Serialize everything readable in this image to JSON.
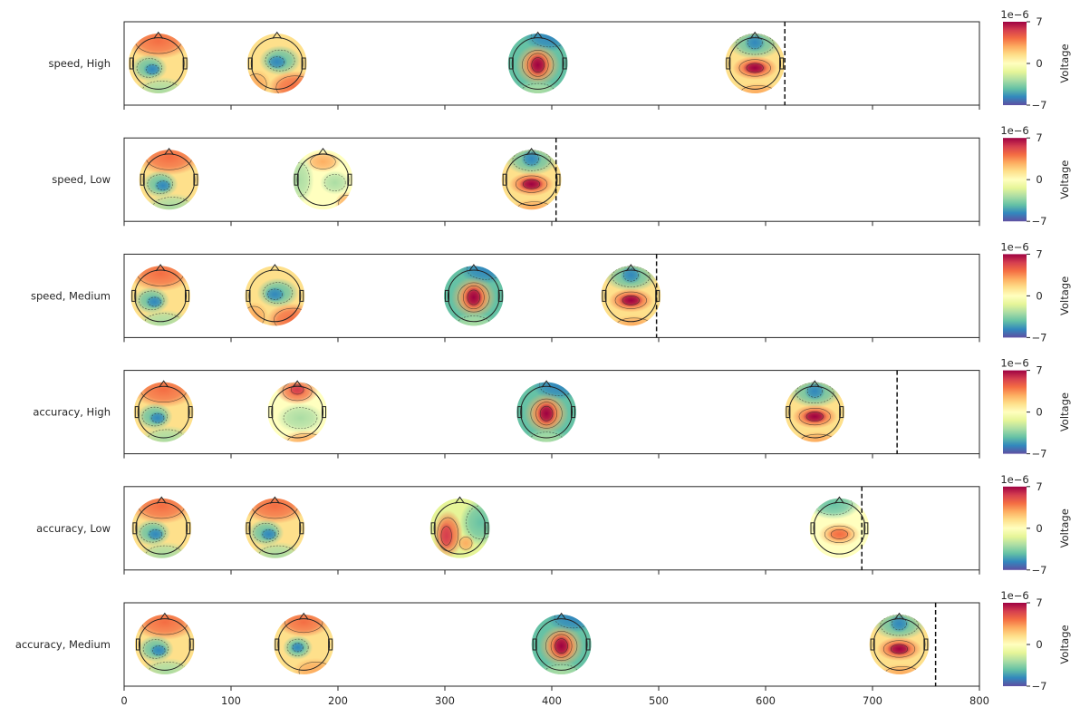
{
  "chart_data": {
    "type": "topomap-timeline",
    "x_range": [
      0,
      800
    ],
    "x_ticks": [
      0,
      100,
      200,
      300,
      400,
      500,
      600,
      700,
      800
    ],
    "colorbar": {
      "label": "Voltage",
      "exponent_label": "1e−6",
      "ticks": [
        "7",
        "0",
        "−7"
      ],
      "range": [
        -7,
        7
      ],
      "colormap": "Spectral_r"
    },
    "rows": [
      {
        "label": "speed, High",
        "event_time": 618,
        "topomaps": [
          {
            "time": 32,
            "pattern": "frontal-pos-parietal-neg"
          },
          {
            "time": 143,
            "pattern": "posterior-pos-central-neg"
          },
          {
            "time": 387,
            "pattern": "central-pos-strong"
          },
          {
            "time": 590,
            "pattern": "frontal-neg-central-pos"
          }
        ]
      },
      {
        "label": "speed, Low",
        "event_time": 404,
        "topomaps": [
          {
            "time": 42,
            "pattern": "frontal-pos-parietal-neg"
          },
          {
            "time": 186,
            "pattern": "weak-mixed"
          },
          {
            "time": 381,
            "pattern": "frontal-neg-central-pos"
          }
        ]
      },
      {
        "label": "speed, Medium",
        "event_time": 498,
        "topomaps": [
          {
            "time": 34,
            "pattern": "frontal-pos-parietal-neg"
          },
          {
            "time": 141,
            "pattern": "posterior-pos-central-neg"
          },
          {
            "time": 327,
            "pattern": "central-pos-strong"
          },
          {
            "time": 474,
            "pattern": "frontal-neg-central-pos"
          }
        ]
      },
      {
        "label": "accuracy, High",
        "event_time": 723,
        "topomaps": [
          {
            "time": 37,
            "pattern": "frontal-pos-parietal-neg"
          },
          {
            "time": 162,
            "pattern": "frontal-pos-weak"
          },
          {
            "time": 395,
            "pattern": "central-pos-strong"
          },
          {
            "time": 646,
            "pattern": "frontal-neg-central-pos"
          }
        ]
      },
      {
        "label": "accuracy, Low",
        "event_time": 690,
        "topomaps": [
          {
            "time": 35,
            "pattern": "frontal-pos-parietal-neg"
          },
          {
            "time": 141,
            "pattern": "frontal-pos-parietal-neg"
          },
          {
            "time": 314,
            "pattern": "lateral-pos"
          },
          {
            "time": 669,
            "pattern": "frontal-neg-central-pos-weak"
          }
        ]
      },
      {
        "label": "accuracy, Medium",
        "event_time": 759,
        "topomaps": [
          {
            "time": 38,
            "pattern": "frontal-pos-parietal-neg"
          },
          {
            "time": 168,
            "pattern": "frontal-pos-central-neg"
          },
          {
            "time": 409,
            "pattern": "central-pos-strong"
          },
          {
            "time": 725,
            "pattern": "frontal-neg-central-pos"
          }
        ]
      }
    ]
  }
}
